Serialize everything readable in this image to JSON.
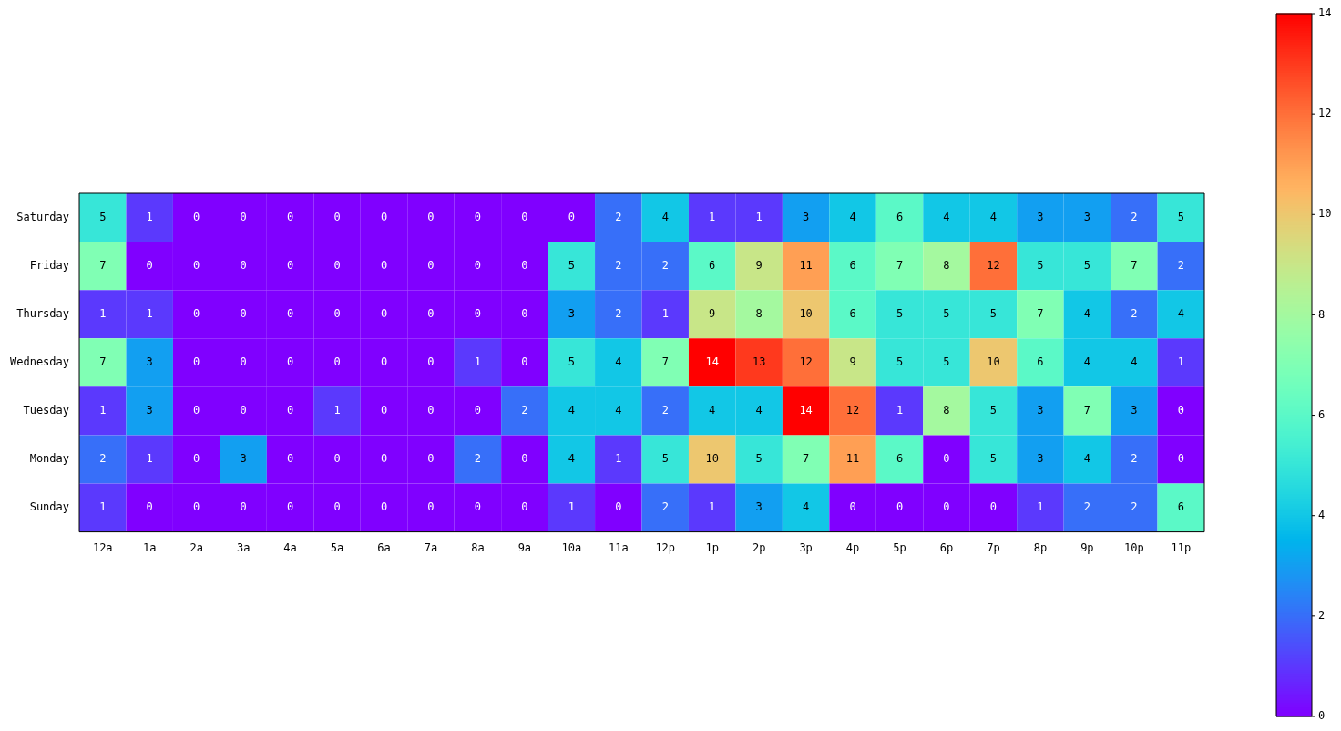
{
  "chart_data": {
    "type": "heatmap",
    "categories": [
      "12a",
      "1a",
      "2a",
      "3a",
      "4a",
      "5a",
      "6a",
      "7a",
      "8a",
      "9a",
      "10a",
      "11a",
      "12p",
      "1p",
      "2p",
      "3p",
      "4p",
      "5p",
      "6p",
      "7p",
      "8p",
      "9p",
      "10p",
      "11p"
    ],
    "y_categories": [
      "Saturday",
      "Friday",
      "Thursday",
      "Wednesday",
      "Tuesday",
      "Monday",
      "Sunday"
    ],
    "cells": [
      [
        5,
        1,
        0,
        0,
        0,
        0,
        0,
        0,
        0,
        0,
        0,
        2,
        4,
        1,
        1,
        3,
        4,
        6,
        4,
        4,
        3,
        3,
        2,
        5
      ],
      [
        7,
        0,
        0,
        0,
        0,
        0,
        0,
        0,
        0,
        0,
        5,
        2,
        2,
        6,
        9,
        11,
        6,
        7,
        8,
        12,
        5,
        5,
        7,
        2
      ],
      [
        1,
        1,
        0,
        0,
        0,
        0,
        0,
        0,
        0,
        0,
        3,
        2,
        1,
        9,
        8,
        10,
        6,
        5,
        5,
        5,
        7,
        4,
        2,
        4
      ],
      [
        7,
        3,
        0,
        0,
        0,
        0,
        0,
        0,
        1,
        0,
        5,
        4,
        7,
        14,
        13,
        12,
        9,
        5,
        5,
        10,
        6,
        4,
        4,
        1
      ],
      [
        1,
        3,
        0,
        0,
        0,
        1,
        0,
        0,
        0,
        2,
        4,
        4,
        2,
        4,
        4,
        14,
        12,
        1,
        8,
        5,
        3,
        7,
        3,
        0
      ],
      [
        2,
        1,
        0,
        3,
        0,
        0,
        0,
        0,
        2,
        0,
        4,
        1,
        5,
        10,
        5,
        7,
        11,
        6,
        0,
        5,
        3,
        4,
        2,
        0
      ],
      [
        1,
        0,
        0,
        0,
        0,
        0,
        0,
        0,
        0,
        0,
        1,
        0,
        2,
        1,
        3,
        4,
        0,
        0,
        0,
        0,
        1,
        2,
        2,
        6
      ]
    ],
    "clim": [
      0,
      14
    ],
    "cticks": [
      0,
      2,
      4,
      6,
      8,
      10,
      12,
      14
    ],
    "data_labels": true
  }
}
